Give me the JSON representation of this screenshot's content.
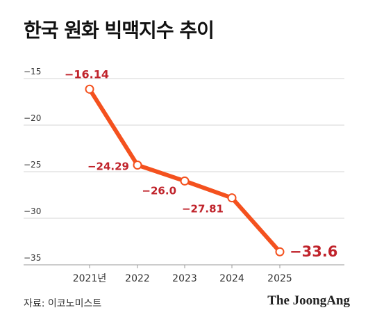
{
  "title": "한국 원화 빅맥지수 추이",
  "source": "자료: 이코노미스트",
  "brand": "The JoongAng",
  "colors": {
    "line": "#f4511e",
    "label": "#c0232b",
    "grid": "#d6d6d6",
    "axis": "#999999",
    "tick": "#333333"
  },
  "chart_data": {
    "type": "line",
    "title": "한국 원화 빅맥지수 추이",
    "categories": [
      "2021년",
      "2022",
      "2023",
      "2024",
      "2025"
    ],
    "series": [
      {
        "values": [
          -16.14,
          -24.29,
          -26.0,
          -27.81,
          -33.6
        ]
      }
    ],
    "data_labels": [
      "−16.14",
      "−24.29",
      "−26.0",
      "−27.81",
      "−33.6"
    ],
    "y_ticks": [
      -15,
      -20,
      -25,
      -30,
      -35
    ],
    "y_tick_labels": [
      "−15",
      "−20",
      "−25",
      "−30",
      "−35"
    ],
    "ylim": [
      -35,
      -15
    ],
    "grid": true,
    "xlabel": "",
    "ylabel": ""
  }
}
